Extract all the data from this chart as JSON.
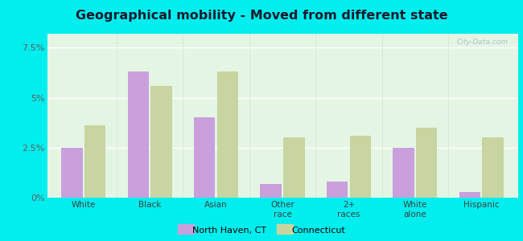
{
  "title": "Geographical mobility - Moved from different state",
  "categories": [
    "White",
    "Black",
    "Asian",
    "Other\nrace",
    "2+\nraces",
    "White\nalone",
    "Hispanic"
  ],
  "north_haven": [
    2.5,
    6.3,
    4.0,
    0.7,
    0.8,
    2.5,
    0.3
  ],
  "connecticut": [
    3.6,
    5.6,
    6.3,
    3.0,
    3.1,
    3.5,
    3.0
  ],
  "bar_color_nh": "#c9a0dc",
  "bar_color_ct": "#c8d5a0",
  "ylim": [
    0,
    8.2
  ],
  "yticks": [
    0,
    2.5,
    5.0,
    7.5
  ],
  "ytick_labels": [
    "0%",
    "2.5%",
    "5%",
    "7.5%"
  ],
  "bg_top": "#f0faf0",
  "bg_bottom": "#d8f0d8",
  "outer_background": "#00eeee",
  "legend_nh": "North Haven, CT",
  "legend_ct": "Connecticut",
  "watermark": "City-Data.com"
}
